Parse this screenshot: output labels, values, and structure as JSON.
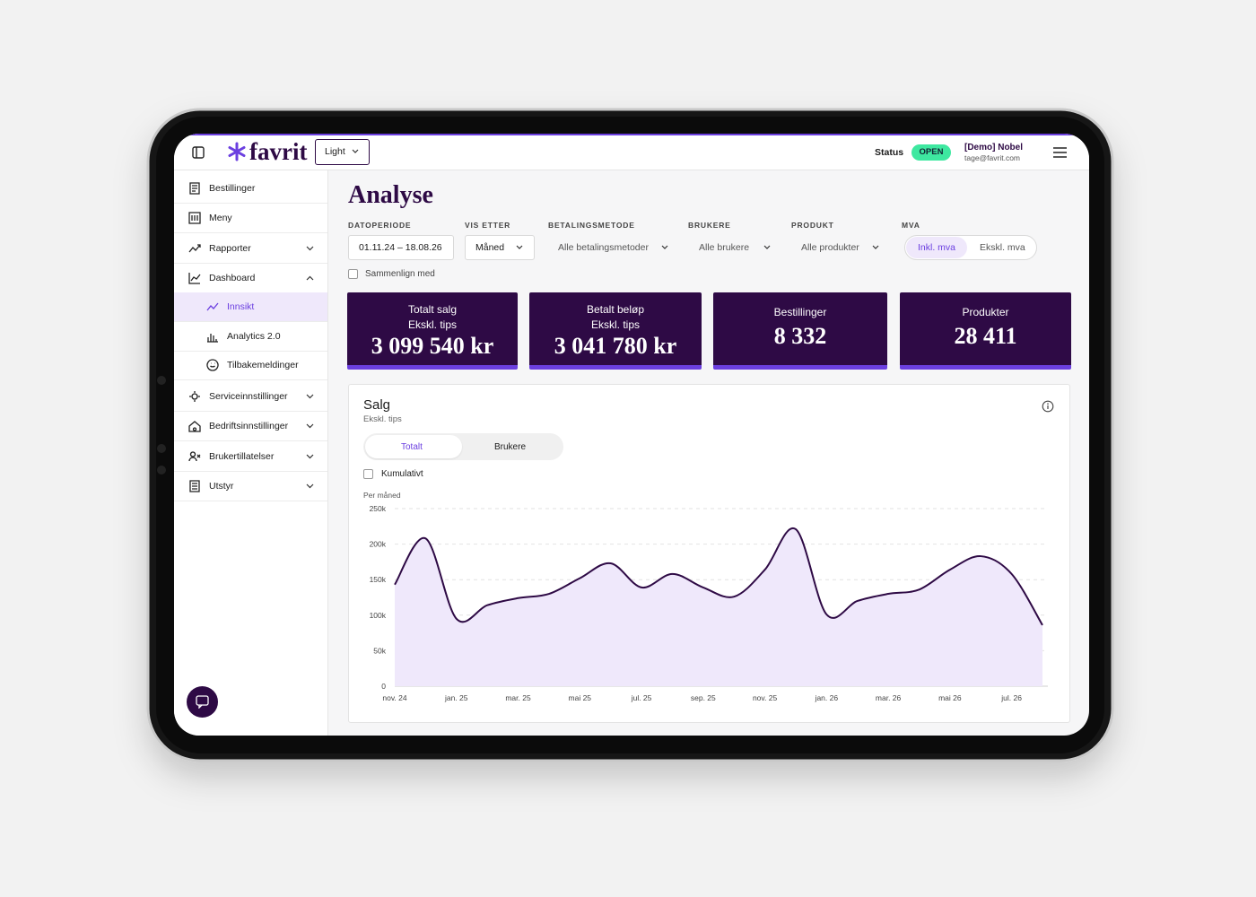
{
  "header": {
    "logo": "favrit",
    "theme": "Light",
    "status_label": "Status",
    "status": "OPEN",
    "user_name": "[Demo] Nobel",
    "user_email": "tage@favrit.com"
  },
  "sidebar": {
    "items": [
      "Bestillinger",
      "Meny",
      "Rapporter",
      "Dashboard"
    ],
    "dashboard_children": [
      "Innsikt",
      "Analytics 2.0",
      "Tilbakemeldinger"
    ],
    "more_items": [
      "Serviceinnstillinger",
      "Bedriftsinnstillinger",
      "Brukertillatelser",
      "Utstyr"
    ]
  },
  "page": {
    "title": "Analyse"
  },
  "filters": [
    {
      "label": "DATOPERIODE",
      "value": "01.11.24 – 18.08.26"
    },
    {
      "label": "VIS ETTER",
      "value": "Måned"
    },
    {
      "label": "BETALINGSMETODE",
      "value": "Alle betalingsmetoder"
    },
    {
      "label": "BRUKERE",
      "value": "Alle brukere"
    },
    {
      "label": "PRODUKT",
      "value": "Alle produkter"
    }
  ],
  "mva": {
    "label": "MVA",
    "options": [
      "Inkl. mva",
      "Ekskl. mva"
    ]
  },
  "compare": "Sammenlign med",
  "kpis": [
    {
      "title": "Totalt salg",
      "subtitle": "Ekskl. tips",
      "value": "3 099 540 kr"
    },
    {
      "title": "Betalt beløp",
      "subtitle": "Ekskl. tips",
      "value": "3 041 780 kr"
    },
    {
      "title": "Bestillinger",
      "value": "8 332"
    },
    {
      "title": "Produkter",
      "value": "28 411"
    }
  ],
  "panel": {
    "title": "Salg",
    "subtitle": "Ekskl. tips",
    "tabs": [
      "Totalt",
      "Brukere"
    ],
    "cumulative": "Kumulativt",
    "period": "Per måned"
  },
  "chart_data": {
    "type": "line",
    "categories": [
      "nov. 24",
      null,
      "jan. 25",
      null,
      "mar. 25",
      null,
      "mai 25",
      null,
      "jul. 25",
      null,
      "sep. 25",
      null,
      "nov. 25",
      null,
      "jan. 26",
      null,
      "mar. 26",
      null,
      "mai 26",
      null,
      "jul. 26",
      null
    ],
    "series": [
      {
        "name": "Salg",
        "color": "#2e0a45",
        "fill": "#efe8fb",
        "values": [
          143000,
          208000,
          95000,
          114000,
          124000,
          130000,
          152000,
          173000,
          139000,
          158000,
          139000,
          126000,
          164000,
          221000,
          101000,
          120000,
          130000,
          136000,
          164000,
          183000,
          158000,
          86000
        ]
      }
    ],
    "ylim": [
      0,
      250000
    ],
    "yticks": [
      0,
      {
        "value": 50000,
        "label": "50k"
      },
      {
        "value": 100000,
        "label": "100k"
      },
      {
        "value": 150000,
        "label": "150k"
      },
      {
        "value": 200000,
        "label": "200k"
      },
      {
        "value": 250000,
        "label": "250k"
      }
    ],
    "grid": true
  }
}
